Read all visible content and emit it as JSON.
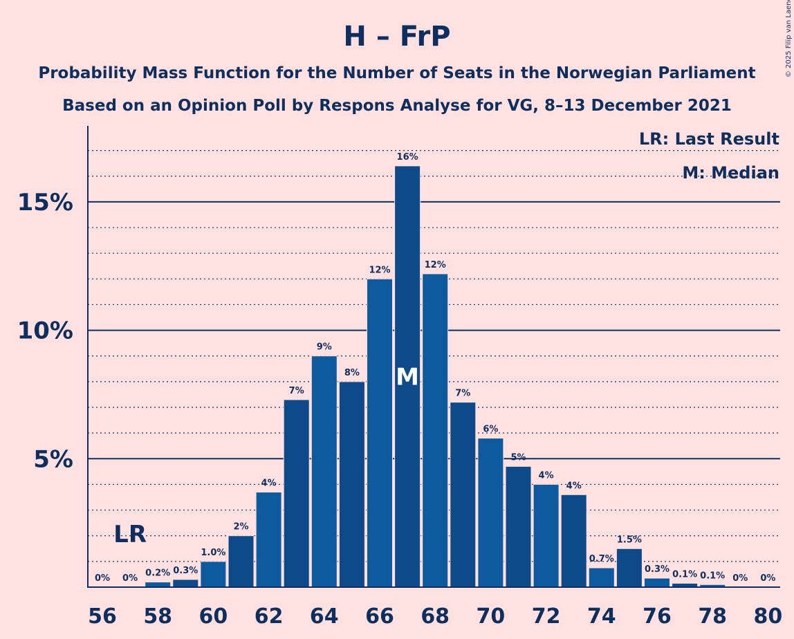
{
  "title": "H – FrP",
  "subtitle1": "Probability Mass Function for the Number of Seats in the Norwegian Parliament",
  "subtitle2": "Based on an Opinion Poll by Respons Analyse for VG, 8–13 December 2021",
  "copyright": "© 2025 Filip van Laenen",
  "legend": {
    "last_result": "LR: Last Result",
    "median": "M: Median"
  },
  "colors": {
    "background": "#ffe1e1",
    "bar_dark": "#0e4a8a",
    "bar_light": "#0e5a9e",
    "text": "#0e2f5e"
  },
  "chart_data": {
    "type": "bar",
    "x": [
      56,
      57,
      58,
      59,
      60,
      61,
      62,
      63,
      64,
      65,
      66,
      67,
      68,
      69,
      70,
      71,
      72,
      73,
      74,
      75,
      76,
      77,
      78,
      79,
      80
    ],
    "values": [
      0,
      0,
      0.2,
      0.3,
      1.0,
      2.0,
      3.7,
      7.3,
      9.0,
      8.0,
      12.0,
      16.4,
      12.2,
      7.2,
      5.8,
      4.7,
      4.0,
      3.6,
      0.75,
      1.5,
      0.35,
      0.15,
      0.1,
      0,
      0
    ],
    "labels": [
      "0%",
      "0%",
      "0.2%",
      "0.3%",
      "1.0%",
      "2%",
      "4%",
      "7%",
      "9%",
      "8%",
      "12%",
      "16%",
      "12%",
      "7%",
      "6%",
      "5%",
      "4%",
      "4%",
      "0.7%",
      "1.5%",
      "0.3%",
      "0.1%",
      "0.1%",
      "0%",
      "0%"
    ],
    "x_tick_labels": [
      "56",
      "58",
      "60",
      "62",
      "64",
      "66",
      "68",
      "70",
      "72",
      "74",
      "76",
      "78",
      "80"
    ],
    "y_ticks": [
      5,
      10,
      15
    ],
    "y_tick_labels": [
      "5%",
      "10%",
      "15%"
    ],
    "ylim": [
      0,
      17.5
    ],
    "minor_grid_step": 1,
    "last_result_seat": 57,
    "last_result_marker": "LR",
    "median_seat": 67,
    "median_marker": "M"
  }
}
